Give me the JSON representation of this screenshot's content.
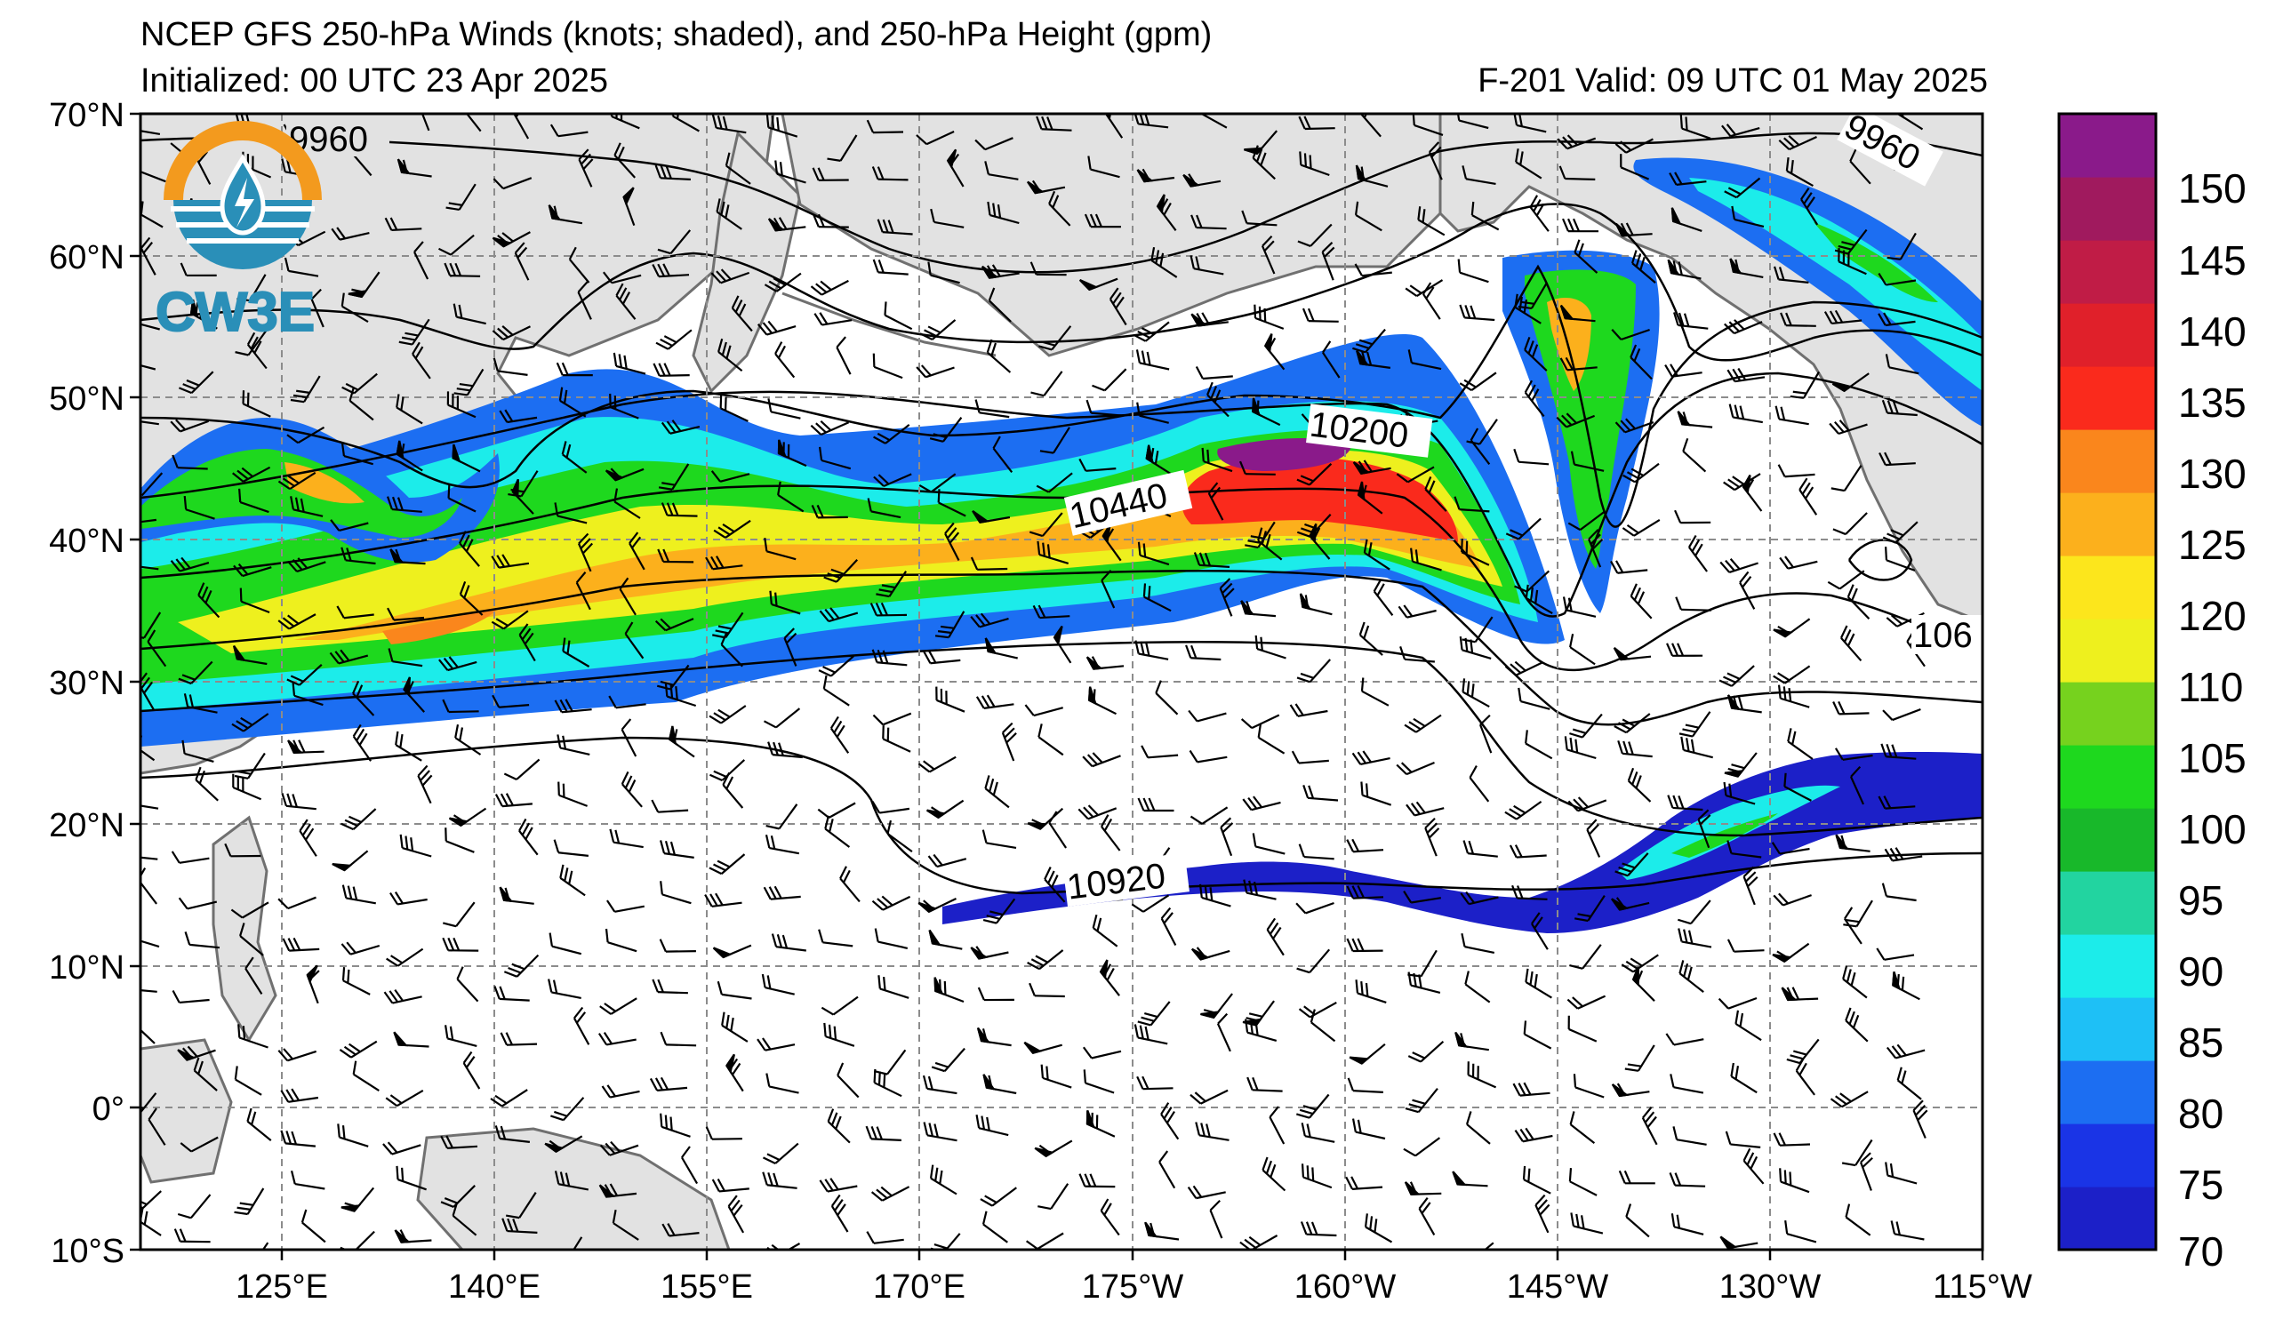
{
  "header": {
    "title": "NCEP GFS 250-hPa Winds (knots; shaded), and 250-hPa Height (gpm)",
    "initialized": "Initialized: 00 UTC 23 Apr 2025",
    "valid": "F-201  Valid: 09 UTC 01 May 2025"
  },
  "logo": {
    "text": "CW3E",
    "colors": {
      "ring": "#f39a1e",
      "body": "#2a8fb8"
    }
  },
  "map": {
    "extent": {
      "lon_west": 110,
      "lon_east": -115,
      "lat_south": -10,
      "lat_north": 70
    },
    "lat_labels": [
      "70°N",
      "60°N",
      "50°N",
      "40°N",
      "30°N",
      "20°N",
      "10°N",
      "0°",
      "10°S"
    ],
    "lon_labels": [
      "125°E",
      "140°E",
      "155°E",
      "170°E",
      "175°W",
      "160°W",
      "145°W",
      "130°W",
      "115°W"
    ],
    "contour_labels": [
      "9960",
      "9960",
      "10200",
      "10440",
      "10920",
      "106"
    ],
    "colors": {
      "land": "#e2e2e2",
      "coast": "#707070",
      "grid": "#8c8c8c",
      "contour": "#000000"
    }
  },
  "colorbar": {
    "labels": [
      "150",
      "145",
      "140",
      "135",
      "130",
      "125",
      "120",
      "110",
      "105",
      "100",
      "95",
      "90",
      "85",
      "80",
      "75",
      "70"
    ],
    "colors": [
      "#1c20c8",
      "#1a34e6",
      "#1c6ef2",
      "#1ec0f6",
      "#1cecea",
      "#22d4a0",
      "#18b82a",
      "#1ed81e",
      "#76d21e",
      "#eef01e",
      "#fce61c",
      "#fcb01c",
      "#fa861c",
      "#fa2a1c",
      "#e0202a",
      "#c01c46",
      "#a01a5e",
      "#8a1a8a"
    ]
  }
}
